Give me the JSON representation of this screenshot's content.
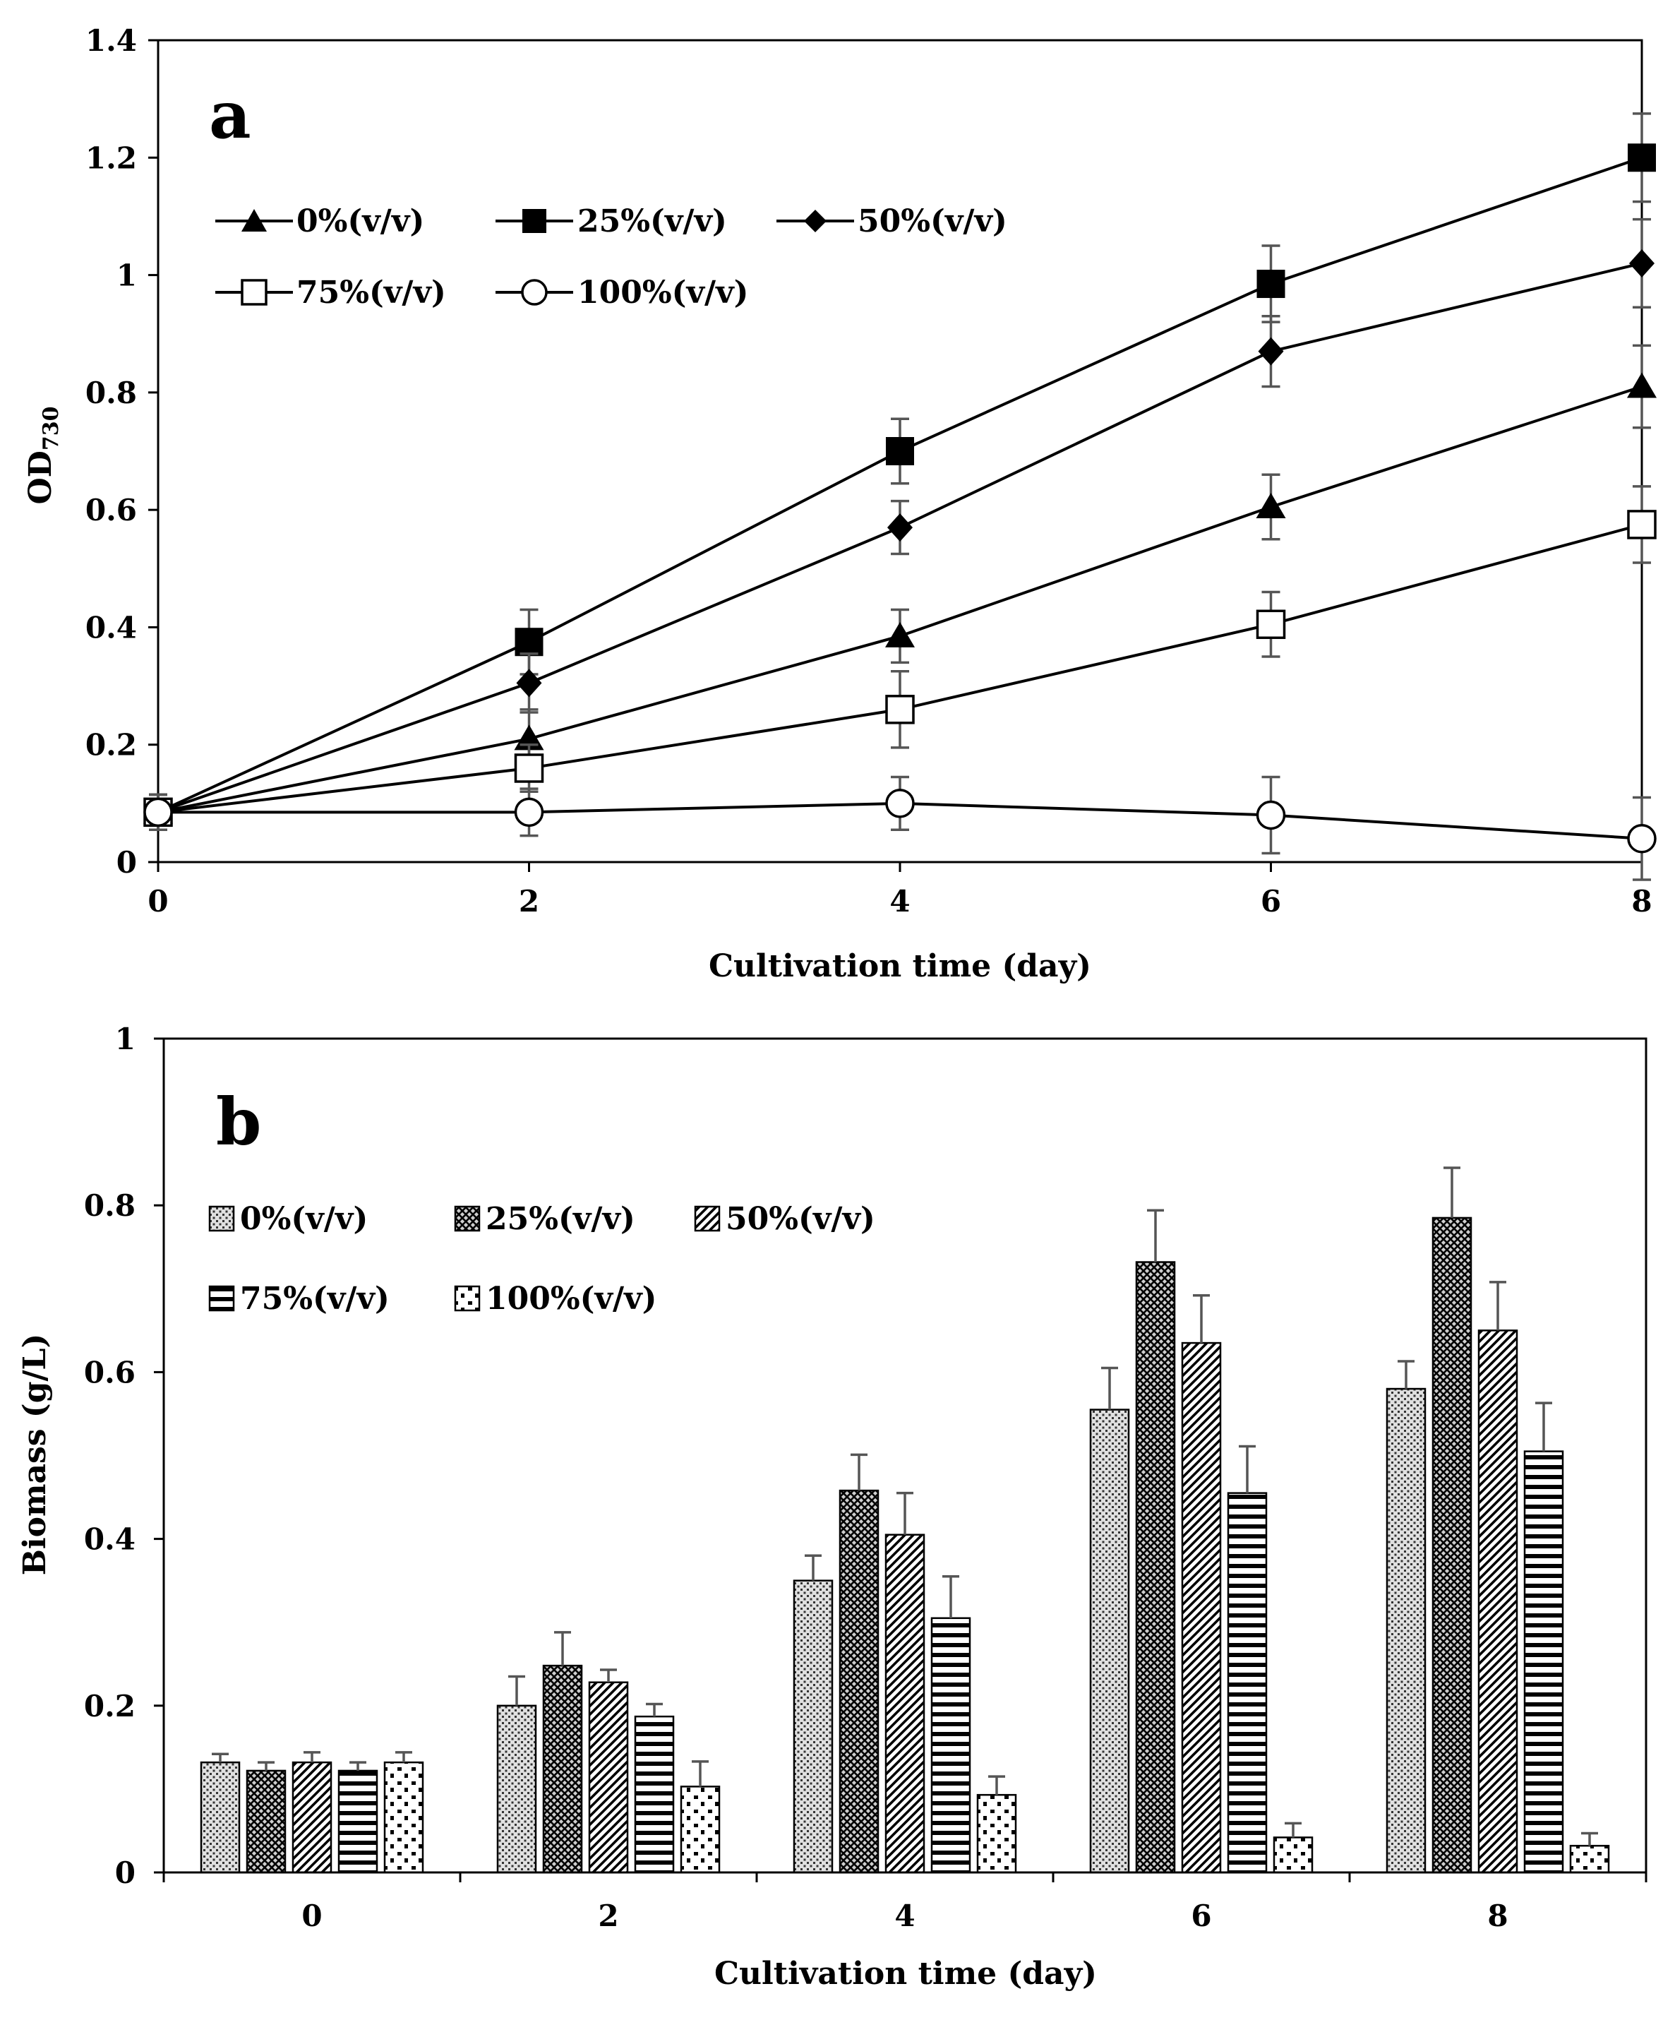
{
  "chart_data": [
    {
      "type": "line",
      "panel_label": "a",
      "xlabel": "Cultivation time (day)",
      "ylabel": "OD",
      "ylabel_subscript": "730",
      "x": [
        0,
        2,
        4,
        6,
        8
      ],
      "xlim": [
        0,
        8
      ],
      "ylim": [
        0,
        1.4
      ],
      "x_ticks": [
        "0",
        "2",
        "4",
        "6",
        "8"
      ],
      "y_ticks": [
        "0",
        "0.2",
        "0.4",
        "0.6",
        "0.8",
        "1",
        "1.2",
        "1.4"
      ],
      "grid": false,
      "legend_position": "top-left",
      "series": [
        {
          "name": "0%(v/v)",
          "marker": "triangle-filled",
          "values": [
            0.085,
            0.21,
            0.385,
            0.605,
            0.81
          ],
          "errors": [
            0.03,
            0.05,
            0.045,
            0.055,
            0.07
          ]
        },
        {
          "name": "25%(v/v)",
          "marker": "square-filled",
          "values": [
            0.085,
            0.375,
            0.7,
            0.985,
            1.2
          ],
          "errors": [
            0.03,
            0.055,
            0.055,
            0.065,
            0.075
          ]
        },
        {
          "name": "50%(v/v)",
          "marker": "diamond-filled",
          "values": [
            0.085,
            0.305,
            0.57,
            0.87,
            1.02
          ],
          "errors": [
            0.03,
            0.05,
            0.045,
            0.06,
            0.075
          ]
        },
        {
          "name": "75%(v/v)",
          "marker": "square-open",
          "values": [
            0.085,
            0.16,
            0.26,
            0.405,
            0.575
          ],
          "errors": [
            0.03,
            0.04,
            0.065,
            0.055,
            0.065
          ]
        },
        {
          "name": "100%(v/v)",
          "marker": "circle-open",
          "values": [
            0.085,
            0.085,
            0.1,
            0.08,
            0.04
          ],
          "errors": [
            0.03,
            0.04,
            0.045,
            0.065,
            0.07
          ]
        }
      ]
    },
    {
      "type": "bar",
      "panel_label": "b",
      "xlabel": "Cultivation time (day)",
      "ylabel": "Biomass (g/L)",
      "categories": [
        "0",
        "2",
        "4",
        "6",
        "8"
      ],
      "ylim": [
        0,
        1
      ],
      "y_ticks": [
        "0",
        "0.2",
        "0.4",
        "0.6",
        "0.8",
        "1"
      ],
      "grid": false,
      "legend_position": "top-left",
      "series": [
        {
          "name": "0%(v/v)",
          "pattern": "fine-dots",
          "values": [
            0.132,
            0.2,
            0.35,
            0.555,
            0.58
          ],
          "errors": [
            0.01,
            0.035,
            0.03,
            0.05,
            0.033
          ]
        },
        {
          "name": "25%(v/v)",
          "pattern": "crosshatch",
          "values": [
            0.122,
            0.248,
            0.458,
            0.732,
            0.785
          ],
          "errors": [
            0.01,
            0.04,
            0.043,
            0.062,
            0.06
          ]
        },
        {
          "name": "50%(v/v)",
          "pattern": "diagonal",
          "values": [
            0.132,
            0.228,
            0.405,
            0.635,
            0.65
          ],
          "errors": [
            0.012,
            0.015,
            0.05,
            0.057,
            0.058
          ]
        },
        {
          "name": "75%(v/v)",
          "pattern": "horizontal",
          "values": [
            0.122,
            0.187,
            0.305,
            0.455,
            0.505
          ],
          "errors": [
            0.01,
            0.015,
            0.05,
            0.056,
            0.058
          ]
        },
        {
          "name": "100%(v/v)",
          "pattern": "sparse-dots",
          "values": [
            0.132,
            0.103,
            0.093,
            0.042,
            0.032
          ],
          "errors": [
            0.012,
            0.03,
            0.022,
            0.017,
            0.015
          ]
        }
      ]
    }
  ]
}
